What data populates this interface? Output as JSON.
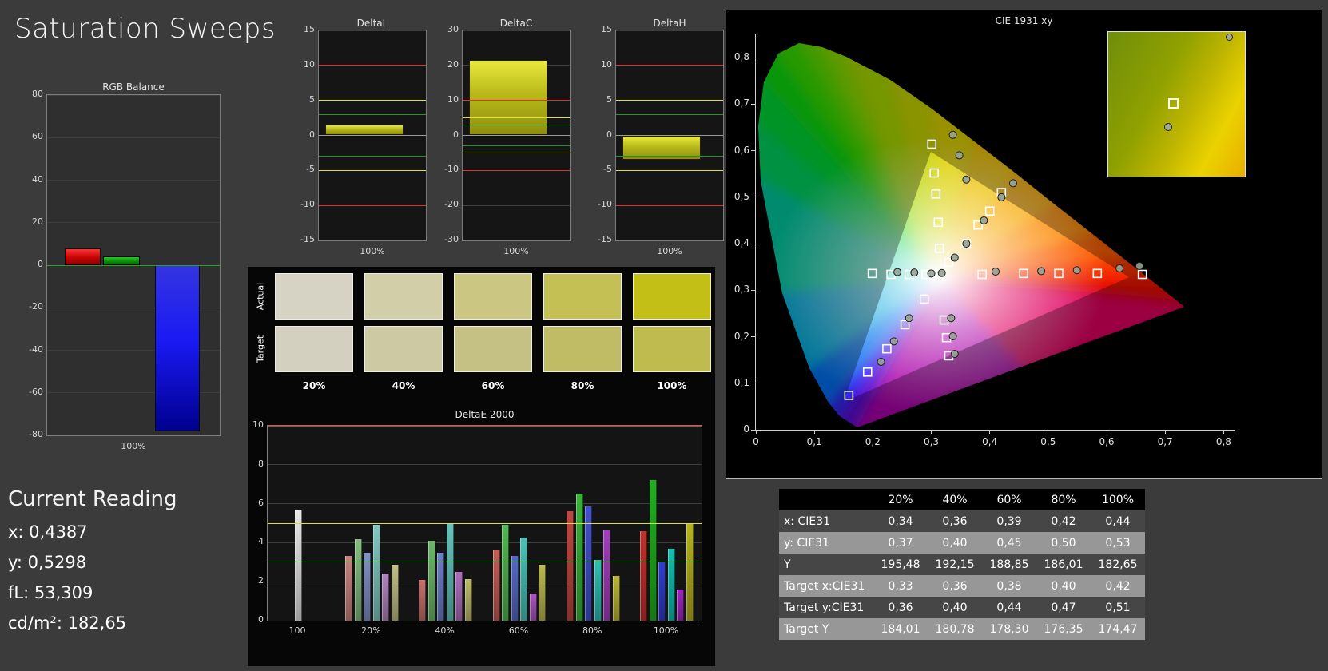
{
  "title": "Saturation Sweeps",
  "current_reading": {
    "heading": "Current Reading",
    "x": "x: 0,4387",
    "y": "y: 0,5298",
    "fl": "fL: 53,309",
    "cdm2": "cd/m²: 182,65"
  },
  "swatches": {
    "row_labels": [
      "Actual",
      "Target"
    ],
    "col_labels": [
      "20%",
      "40%",
      "60%",
      "80%",
      "100%"
    ],
    "actual_colors": [
      "#d6d3c4",
      "#d2cea7",
      "#cbc783",
      "#c5c054",
      "#c3bf16"
    ],
    "target_colors": [
      "#d3d0bf",
      "#cdc9a2",
      "#c5c184",
      "#c0bc66",
      "#bfbb4f"
    ]
  },
  "table": {
    "columns": [
      "",
      "20%",
      "40%",
      "60%",
      "80%",
      "100%"
    ],
    "rows": [
      {
        "label": "x: CIE31",
        "values": [
          "0,34",
          "0,36",
          "0,39",
          "0,42",
          "0,44"
        ]
      },
      {
        "label": "y: CIE31",
        "values": [
          "0,37",
          "0,40",
          "0,45",
          "0,50",
          "0,53"
        ]
      },
      {
        "label": "Y",
        "values": [
          "195,48",
          "192,15",
          "188,85",
          "186,01",
          "182,65"
        ]
      },
      {
        "label": "Target x:CIE31",
        "values": [
          "0,33",
          "0,36",
          "0,38",
          "0,40",
          "0,42"
        ]
      },
      {
        "label": "Target y:CIE31",
        "values": [
          "0,36",
          "0,40",
          "0,44",
          "0,47",
          "0,51"
        ]
      },
      {
        "label": "Target Y",
        "values": [
          "184,01",
          "180,78",
          "178,30",
          "176,35",
          "174,47"
        ]
      }
    ]
  },
  "chart_data": [
    {
      "id": "rgb_balance",
      "type": "bar",
      "title": "RGB Balance",
      "xlabel": "100%",
      "ylim": [
        -80,
        80
      ],
      "yticks": [
        80,
        60,
        40,
        20,
        0,
        -20,
        -40,
        -60,
        -80
      ],
      "categories": [
        "red",
        "green",
        "blue"
      ],
      "values": [
        8,
        4,
        -78
      ],
      "limit_lines": [
        {
          "y": 0,
          "color": "#2aa02a"
        }
      ]
    },
    {
      "id": "delta_l",
      "type": "bar",
      "title": "DeltaL",
      "xlabel": "100%",
      "ylim": [
        -15,
        15
      ],
      "yticks": [
        15,
        10,
        5,
        0,
        -5,
        -10,
        -15
      ],
      "values": [
        1.5
      ],
      "limit_lines": [
        {
          "y": 10,
          "color": "#e03030"
        },
        {
          "y": -10,
          "color": "#e03030"
        },
        {
          "y": 5,
          "color": "#e0e030"
        },
        {
          "y": -5,
          "color": "#e0e030"
        },
        {
          "y": 3,
          "color": "#1f9a1f"
        },
        {
          "y": -3,
          "color": "#1f9a1f"
        }
      ]
    },
    {
      "id": "delta_c",
      "type": "bar",
      "title": "DeltaC",
      "xlabel": "100%",
      "ylim": [
        -30,
        30
      ],
      "yticks": [
        30,
        20,
        10,
        0,
        -10,
        -20,
        -30
      ],
      "values": [
        21.5
      ],
      "limit_lines": [
        {
          "y": 10,
          "color": "#e03030"
        },
        {
          "y": -10,
          "color": "#e03030"
        },
        {
          "y": 5,
          "color": "#e0e030"
        },
        {
          "y": -5,
          "color": "#e0e030"
        },
        {
          "y": 3,
          "color": "#1f9a1f"
        },
        {
          "y": -3,
          "color": "#1f9a1f"
        }
      ]
    },
    {
      "id": "delta_h",
      "type": "bar",
      "title": "DeltaH",
      "xlabel": "100%",
      "ylim": [
        -15,
        15
      ],
      "yticks": [
        15,
        10,
        5,
        0,
        -5,
        -10,
        -15
      ],
      "values": [
        -3.5
      ],
      "limit_lines": [
        {
          "y": 10,
          "color": "#e03030"
        },
        {
          "y": -10,
          "color": "#e03030"
        },
        {
          "y": 5,
          "color": "#e0e030"
        },
        {
          "y": -5,
          "color": "#e0e030"
        },
        {
          "y": 3,
          "color": "#1f9a1f"
        },
        {
          "y": -3,
          "color": "#1f9a1f"
        }
      ]
    },
    {
      "id": "delta_e",
      "type": "bar",
      "title": "DeltaE 2000",
      "ylim": [
        0,
        10
      ],
      "yticks": [
        10,
        8,
        6,
        4,
        2,
        0
      ],
      "categories": [
        "100",
        "20%",
        "40%",
        "60%",
        "80%",
        "100%"
      ],
      "limit_lines": [
        {
          "y": 10,
          "color": "#e03030"
        },
        {
          "y": 5,
          "color": "#e0e030"
        },
        {
          "y": 3,
          "color": "#1f9a1f"
        }
      ],
      "groups": [
        {
          "label": "100",
          "bars": [
            {
              "value": 5.7,
              "color": "#e8e8e8"
            }
          ]
        },
        {
          "label": "20%",
          "bars": [
            {
              "value": 3.3,
              "color": "#c9837d"
            },
            {
              "value": 4.2,
              "color": "#86bc81"
            },
            {
              "value": 3.5,
              "color": "#8291c6"
            },
            {
              "value": 4.9,
              "color": "#7fc8c1"
            },
            {
              "value": 2.4,
              "color": "#b284be"
            },
            {
              "value": 2.85,
              "color": "#c0bf86"
            }
          ]
        },
        {
          "label": "40%",
          "bars": [
            {
              "value": 2.1,
              "color": "#c5716c"
            },
            {
              "value": 4.1,
              "color": "#6db96b"
            },
            {
              "value": 3.5,
              "color": "#6c7fc8"
            },
            {
              "value": 4.95,
              "color": "#64c5bd"
            },
            {
              "value": 2.5,
              "color": "#ae6dbe"
            },
            {
              "value": 2.15,
              "color": "#bdbb6b"
            }
          ]
        },
        {
          "label": "60%",
          "bars": [
            {
              "value": 3.65,
              "color": "#c35e58"
            },
            {
              "value": 4.9,
              "color": "#53b653"
            },
            {
              "value": 3.3,
              "color": "#5769ca"
            },
            {
              "value": 4.25,
              "color": "#49c3b9"
            },
            {
              "value": 1.4,
              "color": "#a956be"
            },
            {
              "value": 2.85,
              "color": "#bbb950"
            }
          ]
        },
        {
          "label": "80%",
          "bars": [
            {
              "value": 5.6,
              "color": "#c14841"
            },
            {
              "value": 6.5,
              "color": "#38b338"
            },
            {
              "value": 5.85,
              "color": "#4251cc"
            },
            {
              "value": 3.1,
              "color": "#2ec0b4"
            },
            {
              "value": 4.65,
              "color": "#a33ebe"
            },
            {
              "value": 2.3,
              "color": "#b9b635"
            }
          ]
        },
        {
          "label": "100%",
          "bars": [
            {
              "value": 4.6,
              "color": "#c0322d"
            },
            {
              "value": 7.2,
              "color": "#20b120"
            },
            {
              "value": 3.0,
              "color": "#303dce"
            },
            {
              "value": 3.7,
              "color": "#15beaf"
            },
            {
              "value": 1.6,
              "color": "#9e27be"
            },
            {
              "value": 5.0,
              "color": "#b7b41a"
            }
          ]
        }
      ]
    },
    {
      "id": "cie_1931",
      "type": "scatter",
      "title": "CIE 1931 xy",
      "xlim": [
        0,
        0.82
      ],
      "ylim": [
        0,
        0.85
      ],
      "xtick_labels": [
        "0",
        "0,1",
        "0,2",
        "0,3",
        "0,4",
        "0,5",
        "0,6",
        "0,7",
        "0,8"
      ],
      "ytick_labels": [
        "0",
        "0,1",
        "0,2",
        "0,3",
        "0,4",
        "0,5",
        "0,6",
        "0,7",
        "0,8"
      ],
      "targets": [
        [
          0.316,
          0.334
        ],
        [
          0.301,
          0.614
        ],
        [
          0.305,
          0.552
        ],
        [
          0.308,
          0.507
        ],
        [
          0.312,
          0.446
        ],
        [
          0.314,
          0.39
        ],
        [
          0.33,
          0.36
        ],
        [
          0.36,
          0.4
        ],
        [
          0.38,
          0.44
        ],
        [
          0.4,
          0.47
        ],
        [
          0.42,
          0.51
        ],
        [
          0.387,
          0.334
        ],
        [
          0.458,
          0.336
        ],
        [
          0.518,
          0.336
        ],
        [
          0.584,
          0.336
        ],
        [
          0.661,
          0.334
        ],
        [
          0.291,
          0.334
        ],
        [
          0.262,
          0.334
        ],
        [
          0.231,
          0.334
        ],
        [
          0.199,
          0.336
        ],
        [
          0.288,
          0.281
        ],
        [
          0.255,
          0.226
        ],
        [
          0.224,
          0.174
        ],
        [
          0.191,
          0.124
        ],
        [
          0.159,
          0.074
        ],
        [
          0.322,
          0.236
        ],
        [
          0.326,
          0.198
        ],
        [
          0.33,
          0.159
        ]
      ],
      "measurements": [
        [
          0.318,
          0.337
        ],
        [
          0.337,
          0.634
        ],
        [
          0.348,
          0.59
        ],
        [
          0.36,
          0.538
        ],
        [
          0.34,
          0.37
        ],
        [
          0.36,
          0.4
        ],
        [
          0.39,
          0.45
        ],
        [
          0.42,
          0.5
        ],
        [
          0.44,
          0.53
        ],
        [
          0.41,
          0.34
        ],
        [
          0.488,
          0.341
        ],
        [
          0.549,
          0.343
        ],
        [
          0.622,
          0.347
        ],
        [
          0.656,
          0.352
        ],
        [
          0.3,
          0.336
        ],
        [
          0.271,
          0.338
        ],
        [
          0.242,
          0.339
        ],
        [
          0.262,
          0.24
        ],
        [
          0.236,
          0.19
        ],
        [
          0.214,
          0.146
        ],
        [
          0.334,
          0.24
        ],
        [
          0.337,
          0.201
        ],
        [
          0.34,
          0.163
        ]
      ],
      "inset": {
        "square_pos": [
          44,
          46
        ],
        "circle_pos": [
          41,
          63
        ],
        "corner_circle_pos": [
          86,
          1
        ]
      }
    }
  ]
}
